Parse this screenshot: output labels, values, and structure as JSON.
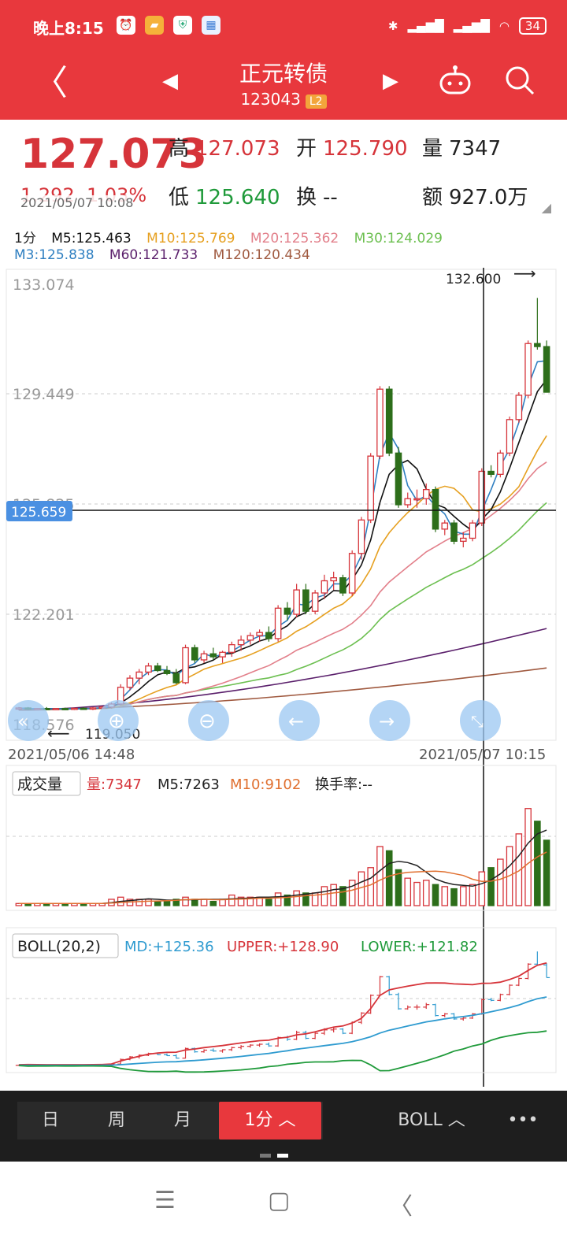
{
  "status": {
    "time": "晚上8:15",
    "battery": "34",
    "icons": [
      "alarm-icon",
      "folder-icon",
      "shield-icon",
      "calendar-icon"
    ]
  },
  "header": {
    "title": "正元转债",
    "code": "123043",
    "badge": "L2"
  },
  "quote": {
    "price": "127.073",
    "change": "1.292",
    "change_pct": "1.03%",
    "high_label": "高",
    "high": "127.073",
    "open_label": "开",
    "open": "125.790",
    "volume_label": "量",
    "volume": "7347",
    "low_label": "低",
    "low": "125.640",
    "turnover_label": "换",
    "turnover": "--",
    "amount_label": "额",
    "amount": "927.0万",
    "time": "2021/05/07 10:08"
  },
  "ma": {
    "period": "1分",
    "m5": "M5:125.463",
    "m10": "M10:125.769",
    "m20": "M20:125.362",
    "m30": "M30:124.029",
    "m3": "M3:125.838",
    "m60": "M60:121.733",
    "m120": "M120:120.434"
  },
  "colors": {
    "up": "#d6343a",
    "down": "#2d6e1a",
    "m3": "#2f7fc1",
    "m5": "#111111",
    "m10": "#e6a020",
    "m20": "#e27f8a",
    "m30": "#6cbf50",
    "m60": "#5a1f6b",
    "m120": "#a05a40"
  },
  "chart_data": {
    "type": "candlestick",
    "y_ticks": [
      "133.074",
      "129.449",
      "125.825",
      "122.201",
      "118.576"
    ],
    "ylim": [
      118.576,
      133.074
    ],
    "high_label": "132.600",
    "low_label": "119.050",
    "crosshair_value": "125.659",
    "x_start": "2021/05/06 14:48",
    "x_end": "2021/05/07 10:15",
    "candles": [
      [
        119.1,
        119.15,
        119.05,
        119.12
      ],
      [
        119.12,
        119.15,
        119.05,
        119.08
      ],
      [
        119.08,
        119.12,
        119.05,
        119.1
      ],
      [
        119.1,
        119.15,
        119.06,
        119.09
      ],
      [
        119.09,
        119.12,
        119.05,
        119.1
      ],
      [
        119.1,
        119.13,
        119.05,
        119.08
      ],
      [
        119.08,
        119.12,
        119.05,
        119.11
      ],
      [
        119.11,
        119.15,
        119.06,
        119.1
      ],
      [
        119.1,
        119.15,
        119.05,
        119.12
      ],
      [
        119.12,
        119.18,
        119.08,
        119.15
      ],
      [
        119.15,
        119.3,
        119.1,
        119.25
      ],
      [
        119.25,
        119.9,
        119.2,
        119.8
      ],
      [
        119.8,
        120.2,
        119.7,
        120.1
      ],
      [
        120.1,
        120.4,
        119.9,
        120.3
      ],
      [
        120.3,
        120.6,
        120.2,
        120.5
      ],
      [
        120.5,
        120.6,
        120.3,
        120.35
      ],
      [
        120.35,
        120.5,
        120.2,
        120.25
      ],
      [
        120.25,
        120.4,
        119.9,
        119.95
      ],
      [
        119.95,
        121.2,
        119.9,
        121.1
      ],
      [
        121.1,
        121.2,
        120.6,
        120.7
      ],
      [
        120.7,
        121.0,
        120.6,
        120.9
      ],
      [
        120.9,
        121.1,
        120.7,
        120.8
      ],
      [
        120.8,
        121.0,
        120.6,
        120.95
      ],
      [
        120.95,
        121.3,
        120.8,
        121.2
      ],
      [
        121.2,
        121.5,
        121.0,
        121.35
      ],
      [
        121.35,
        121.6,
        121.2,
        121.5
      ],
      [
        121.5,
        121.7,
        121.3,
        121.6
      ],
      [
        121.6,
        121.8,
        121.3,
        121.4
      ],
      [
        121.4,
        122.5,
        121.3,
        122.4
      ],
      [
        122.4,
        122.6,
        122.0,
        122.2
      ],
      [
        122.2,
        123.2,
        122.1,
        123.0
      ],
      [
        123.0,
        123.2,
        122.2,
        122.3
      ],
      [
        122.3,
        123.0,
        122.2,
        122.9
      ],
      [
        122.9,
        123.5,
        122.7,
        123.3
      ],
      [
        123.3,
        123.6,
        123.0,
        123.4
      ],
      [
        123.4,
        123.5,
        122.8,
        122.9
      ],
      [
        122.9,
        124.3,
        122.8,
        124.2
      ],
      [
        124.2,
        125.4,
        124.0,
        125.3
      ],
      [
        125.3,
        127.5,
        125.2,
        127.4
      ],
      [
        127.4,
        129.7,
        127.3,
        129.6
      ],
      [
        129.6,
        129.7,
        127.4,
        127.5
      ],
      [
        127.5,
        127.7,
        125.7,
        125.8
      ],
      [
        125.8,
        126.2,
        125.7,
        126.0
      ],
      [
        126.0,
        126.3,
        125.7,
        126.0
      ],
      [
        126.0,
        126.5,
        125.8,
        126.3
      ],
      [
        126.3,
        126.4,
        124.9,
        125.0
      ],
      [
        125.0,
        125.3,
        124.8,
        125.2
      ],
      [
        125.2,
        125.3,
        124.5,
        124.6
      ],
      [
        124.6,
        124.9,
        124.4,
        124.7
      ],
      [
        124.7,
        125.3,
        124.6,
        125.2
      ],
      [
        125.2,
        127.0,
        125.1,
        126.9
      ],
      [
        126.9,
        127.1,
        126.7,
        126.8
      ],
      [
        126.8,
        127.6,
        126.7,
        127.5
      ],
      [
        127.5,
        128.7,
        127.4,
        128.6
      ],
      [
        128.6,
        129.5,
        128.5,
        129.4
      ],
      [
        129.4,
        131.2,
        129.3,
        131.1
      ],
      [
        131.1,
        132.6,
        130.9,
        131.0
      ],
      [
        131.0,
        131.2,
        129.5,
        129.5
      ]
    ],
    "volumes": [
      1,
      1,
      1,
      1,
      1,
      1,
      1,
      1,
      1,
      1,
      3,
      4,
      3,
      3,
      3,
      2,
      2,
      3,
      4,
      3,
      3,
      2,
      3,
      5,
      4,
      4,
      4,
      3,
      6,
      5,
      7,
      6,
      6,
      9,
      10,
      9,
      12,
      16,
      18,
      28,
      26,
      17,
      13,
      11,
      12,
      10,
      9,
      8,
      9,
      10,
      16,
      18,
      22,
      28,
      34,
      46,
      40,
      31
    ],
    "vol_panel": {
      "label": "成交量",
      "vol": "量:7347",
      "m5": "M5:7263",
      "m10": "M10:9102",
      "turnover": "换手率:--"
    },
    "boll_panel": {
      "label": "BOLL(20,2)",
      "md": "MD:+125.36",
      "upper": "UPPER:+128.90",
      "lower": "LOWER:+121.82"
    }
  },
  "bottom_tabs": {
    "day": "日",
    "week": "周",
    "month": "月",
    "min1": "1分 ︿",
    "indicator": "BOLL ︿",
    "more": "•••"
  },
  "navbar": {
    "menu": "☰",
    "home": "▢",
    "back": "〈"
  }
}
